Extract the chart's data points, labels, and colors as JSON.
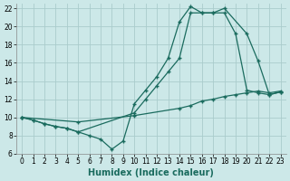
{
  "xlabel": "Humidex (Indice chaleur)",
  "bg_color": "#cce8e8",
  "grid_color": "#aacccc",
  "line_color": "#1a6b5e",
  "line1_x": [
    0,
    1,
    2,
    3,
    4,
    5,
    6,
    7,
    8,
    9,
    10,
    11,
    12,
    13,
    14,
    15,
    16,
    17,
    18,
    20,
    21,
    22,
    23
  ],
  "line1_y": [
    10.0,
    9.7,
    9.3,
    9.0,
    8.8,
    8.4,
    8.0,
    7.6,
    6.5,
    7.4,
    11.5,
    13.0,
    14.5,
    16.5,
    20.5,
    22.2,
    21.5,
    21.5,
    22.0,
    19.2,
    16.2,
    12.5,
    12.8
  ],
  "line2_x": [
    0,
    1,
    2,
    3,
    4,
    5,
    10,
    11,
    12,
    13,
    14,
    15,
    16,
    17,
    18,
    19,
    20,
    21,
    22,
    23
  ],
  "line2_y": [
    10.0,
    9.7,
    9.3,
    9.0,
    8.8,
    8.4,
    10.5,
    12.0,
    13.5,
    15.0,
    16.5,
    21.5,
    21.5,
    21.5,
    21.5,
    19.2,
    13.0,
    12.7,
    12.5,
    12.8
  ],
  "line3_x": [
    0,
    5,
    10,
    14,
    15,
    16,
    17,
    18,
    19,
    20,
    21,
    22,
    23
  ],
  "line3_y": [
    10.0,
    9.5,
    10.2,
    11.0,
    11.3,
    11.8,
    12.0,
    12.3,
    12.5,
    12.7,
    12.9,
    12.7,
    12.9
  ],
  "xlim": [
    -0.5,
    23.5
  ],
  "ylim": [
    6,
    22.5
  ],
  "xticks": [
    0,
    1,
    2,
    3,
    4,
    5,
    6,
    7,
    8,
    9,
    10,
    11,
    12,
    13,
    14,
    15,
    16,
    17,
    18,
    19,
    20,
    21,
    22,
    23
  ],
  "yticks": [
    6,
    8,
    10,
    12,
    14,
    16,
    18,
    20,
    22
  ],
  "tick_fontsize": 5.5,
  "label_fontsize": 7
}
